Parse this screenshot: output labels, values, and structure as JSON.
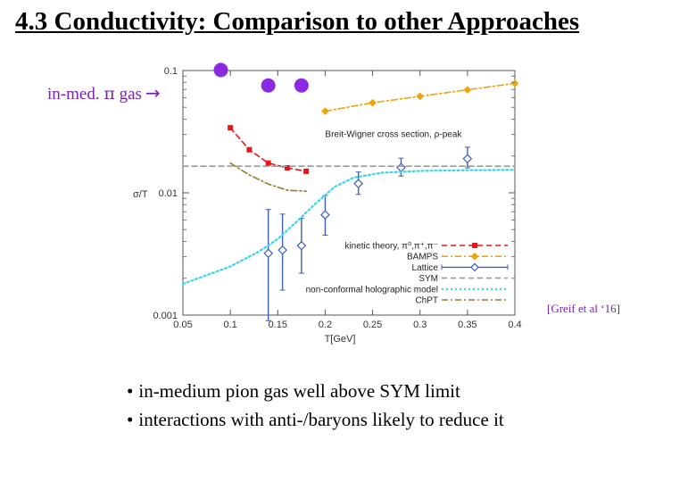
{
  "slide": {
    "title": "4.3 Conductivity: Comparison to other Approaches",
    "inmed_label": "in-med. ",
    "inmed_pi": "π",
    "inmed_gas": " gas",
    "inmed_arrow": "→",
    "citation": "[Greif et al ‘16]",
    "bullets": [
      "in-medium pion gas well above SYM limit",
      "interactions with anti-/baryons likely to reduce it"
    ],
    "bullet_glyph": "•"
  },
  "chart_data": {
    "type": "scatter",
    "xlabel": "T[GeV]",
    "ylabel": "σ/T",
    "xlim": [
      0.05,
      0.4
    ],
    "ylim": [
      0.001,
      0.1
    ],
    "yscale": "log",
    "x_ticks": [
      "0.05",
      "0.1",
      "0.15",
      "0.2",
      "0.25",
      "0.3",
      "0.35",
      "0.4"
    ],
    "x_tick_values": [
      0.05,
      0.1,
      0.15,
      0.2,
      0.25,
      0.3,
      0.35,
      0.4
    ],
    "y_ticks": [
      "0.001",
      "0.01",
      "0.1"
    ],
    "y_tick_values": [
      0.001,
      0.01,
      0.1
    ],
    "grid": false,
    "legend_position": "bottom-right",
    "annotations": [
      "Breit-Wigner cross section, ρ-peak"
    ],
    "series": [
      {
        "name": "kinetic theory, π⁰,π⁺,π⁻",
        "style": "dashed-square",
        "color": "#e8151b",
        "x": [
          0.1,
          0.12,
          0.14,
          0.16,
          0.18
        ],
        "y": [
          0.034,
          0.0225,
          0.0175,
          0.016,
          0.015
        ]
      },
      {
        "name": "BAMPS",
        "style": "dashdot-diamond",
        "color": "#f0a30a",
        "x": [
          0.2,
          0.25,
          0.3,
          0.35,
          0.4
        ],
        "y": [
          0.0465,
          0.0545,
          0.0615,
          0.0695,
          0.0785
        ]
      },
      {
        "name": "Lattice",
        "style": "errorbar-diamond",
        "color": "#3f5fbf",
        "x": [
          0.14,
          0.155,
          0.175,
          0.2,
          0.235,
          0.28,
          0.35
        ],
        "y": [
          0.0032,
          0.0034,
          0.0037,
          0.0066,
          0.0119,
          0.0161,
          0.019
        ],
        "y_low": [
          0.0009,
          0.0016,
          0.0022,
          0.0045,
          0.0097,
          0.0137,
          0.016
        ],
        "y_high": [
          0.0073,
          0.0067,
          0.0062,
          0.0095,
          0.0148,
          0.0192,
          0.0236
        ]
      },
      {
        "name": "SYM",
        "style": "dashed",
        "color": "#9a9a9a",
        "x": [
          0.05,
          0.4
        ],
        "y": [
          0.0165,
          0.0165
        ]
      },
      {
        "name": "non-conformal holographic model",
        "style": "dotted",
        "color": "#33d6f0",
        "x": [
          0.05,
          0.1,
          0.13,
          0.15,
          0.17,
          0.19,
          0.21,
          0.23,
          0.26,
          0.3,
          0.35,
          0.4
        ],
        "y": [
          0.0018,
          0.0025,
          0.0033,
          0.0042,
          0.0058,
          0.0082,
          0.0112,
          0.0133,
          0.0146,
          0.0151,
          0.0153,
          0.0154
        ]
      },
      {
        "name": "ChPT",
        "style": "dashdot",
        "color": "#9b7b2b",
        "x": [
          0.1,
          0.12,
          0.14,
          0.16,
          0.18
        ],
        "y": [
          0.0175,
          0.014,
          0.0118,
          0.0105,
          0.0103
        ]
      },
      {
        "name": "in-med. π gas",
        "style": "dot",
        "color": "#8a2be2",
        "x": [
          0.09,
          0.14,
          0.175
        ],
        "y": [
          0.101,
          0.0755,
          0.0755
        ]
      }
    ]
  }
}
